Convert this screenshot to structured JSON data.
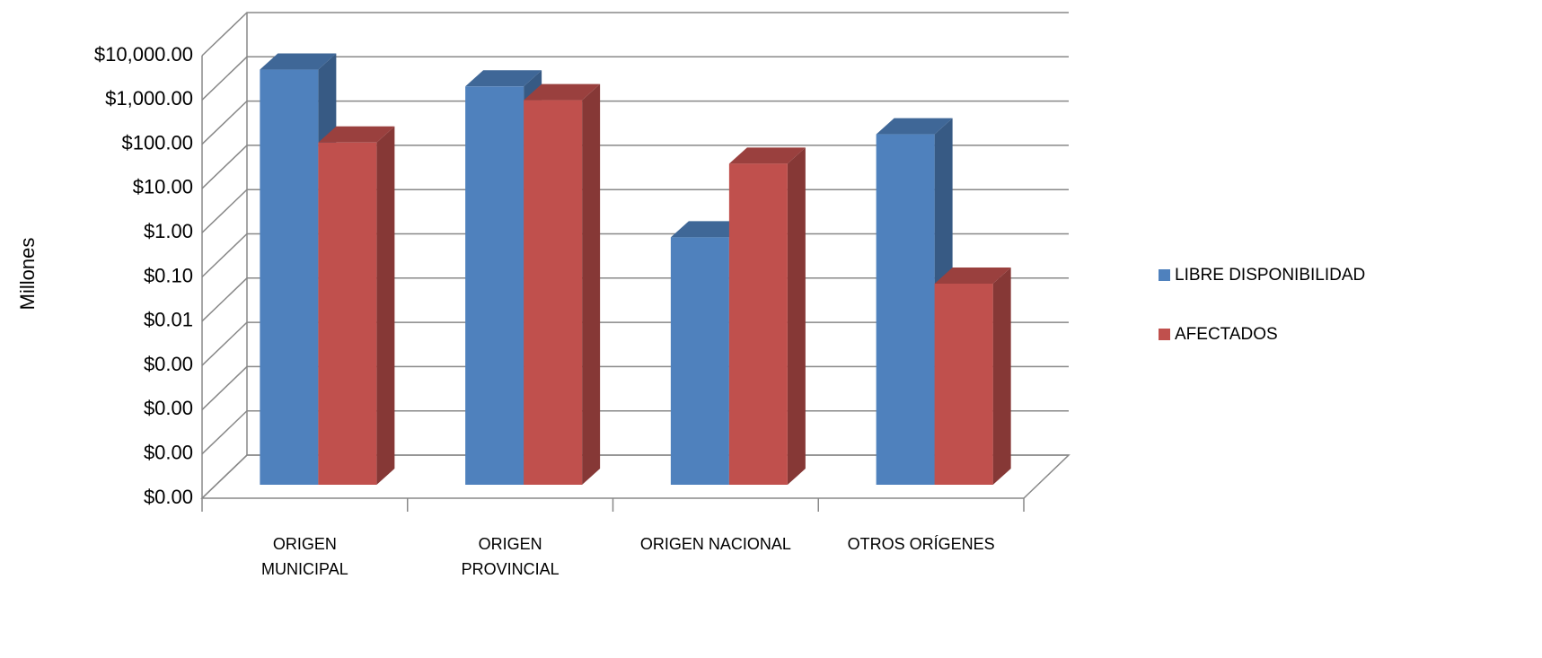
{
  "chart_data": {
    "type": "bar3d",
    "y_label": "Millones",
    "categories": [
      "ORIGEN MUNICIPAL",
      "ORIGEN PROVINCIAL",
      "ORIGEN NACIONAL",
      "OTROS ORÍGENES"
    ],
    "series": [
      {
        "name": "LIBRE DISPONIBILIDAD",
        "color": "#4f81bd",
        "values": [
          2400,
          1000,
          0.39,
          83
        ]
      },
      {
        "name": "AFECTADOS",
        "color": "#c0504d",
        "values": [
          54,
          490,
          18,
          0.035
        ]
      }
    ],
    "log_scale": true,
    "ylim": [
      1e-06,
      10000
    ],
    "yticks": [
      {
        "value": 1e-06,
        "label": "$0.00"
      },
      {
        "value": 1e-05,
        "label": "$0.00"
      },
      {
        "value": 0.0001,
        "label": "$0.00"
      },
      {
        "value": 0.001,
        "label": "$0.00"
      },
      {
        "value": 0.01,
        "label": "$0.01"
      },
      {
        "value": 0.1,
        "label": "$0.10"
      },
      {
        "value": 1,
        "label": "$1.00"
      },
      {
        "value": 10,
        "label": "$10.00"
      },
      {
        "value": 100,
        "label": "$100.00"
      },
      {
        "value": 1000,
        "label": "$1,000.00"
      },
      {
        "value": 10000,
        "label": "$10,000.00"
      }
    ],
    "grid": true,
    "legend": "right"
  }
}
